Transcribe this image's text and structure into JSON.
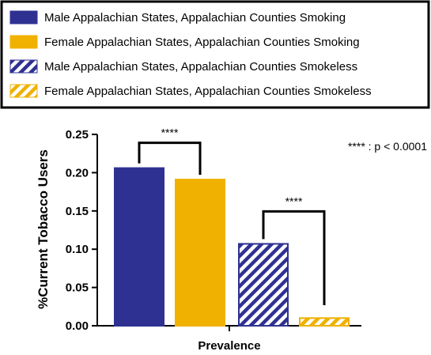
{
  "chart_data": {
    "type": "bar",
    "ylabel": "%Current Tobacco Users",
    "xlabel": "Prevalence",
    "ylim": [
      0,
      0.25
    ],
    "yticks": [
      "0.00",
      "0.05",
      "0.10",
      "0.15",
      "0.20",
      "0.25"
    ],
    "significance_note": "**** : p < 0.0001",
    "legend_position": "top",
    "series": [
      {
        "name": "Male Appalachian States, Appalachian Counties Smoking",
        "value": 0.206,
        "color": "#2f3192",
        "pattern": "solid"
      },
      {
        "name": "Female Appalachian States, Appalachian Counties Smoking",
        "value": 0.191,
        "color": "#f0b100",
        "pattern": "solid"
      },
      {
        "name": "Male Appalachian States, Appalachian Counties Smokeless",
        "value": 0.107,
        "color": "#2f3192",
        "pattern": "hatched"
      },
      {
        "name": "Female Appalachian States, Appalachian Counties Smokeless",
        "value": 0.01,
        "color": "#f0b100",
        "pattern": "hatched"
      }
    ],
    "comparisons": [
      {
        "between": [
          0,
          1
        ],
        "label": "****"
      },
      {
        "between": [
          2,
          3
        ],
        "label": "****"
      }
    ]
  }
}
